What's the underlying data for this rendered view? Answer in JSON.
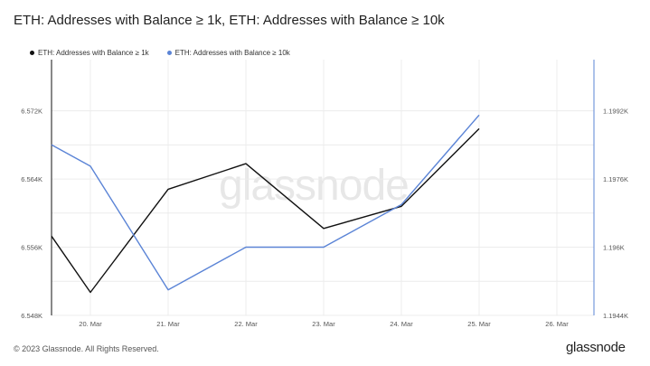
{
  "title": "ETH: Addresses with Balance ≥ 1k, ETH: Addresses with Balance ≥ 10k",
  "footer": "© 2023 Glassnode. All Rights Reserved.",
  "brand": "glassnode",
  "watermark": "glassnode",
  "colors": {
    "series1": "#111111",
    "series2": "#5b84d6",
    "grid": "#ececec"
  },
  "chart_data": {
    "type": "line",
    "x": [
      "20. Mar",
      "21. Mar",
      "22. Mar",
      "23. Mar",
      "24. Mar",
      "25. Mar",
      "26. Mar"
    ],
    "left_axis": {
      "ticks": [
        "6.548K",
        "6.556K",
        "6.564K",
        "6.572K"
      ],
      "ylim": [
        6548,
        6578
      ]
    },
    "right_axis": {
      "ticks": [
        "1.1944K",
        "1.196K",
        "1.1976K",
        "1.1992K"
      ],
      "ylim": [
        1194.4,
        1200.4
      ]
    },
    "series": [
      {
        "name": "ETH: Addresses with Balance ≥ 1k",
        "axis": "left",
        "color": "#111111",
        "points": [
          {
            "x": "2023-03-19T12:00",
            "y": 6557.3
          },
          {
            "x": "2023-03-20T00:00",
            "y": 6550.7
          },
          {
            "x": "2023-03-21T00:00",
            "y": 6562.8
          },
          {
            "x": "2023-03-22T00:00",
            "y": 6565.8
          },
          {
            "x": "2023-03-23T00:00",
            "y": 6558.2
          },
          {
            "x": "2023-03-24T00:00",
            "y": 6560.8
          },
          {
            "x": "2023-03-25T00:00",
            "y": 6569.9
          }
        ]
      },
      {
        "name": "ETH: Addresses with Balance ≥ 10k",
        "axis": "right",
        "color": "#5b84d6",
        "points": [
          {
            "x": "2023-03-19T12:00",
            "y": 1198.4
          },
          {
            "x": "2023-03-20T00:00",
            "y": 1197.9
          },
          {
            "x": "2023-03-21T00:00",
            "y": 1195.0
          },
          {
            "x": "2023-03-22T00:00",
            "y": 1196.0
          },
          {
            "x": "2023-03-23T00:00",
            "y": 1196.0
          },
          {
            "x": "2023-03-24T00:00",
            "y": 1197.0
          },
          {
            "x": "2023-03-25T00:00",
            "y": 1199.1
          }
        ]
      }
    ],
    "grid": true,
    "legend_position": "top-left"
  }
}
